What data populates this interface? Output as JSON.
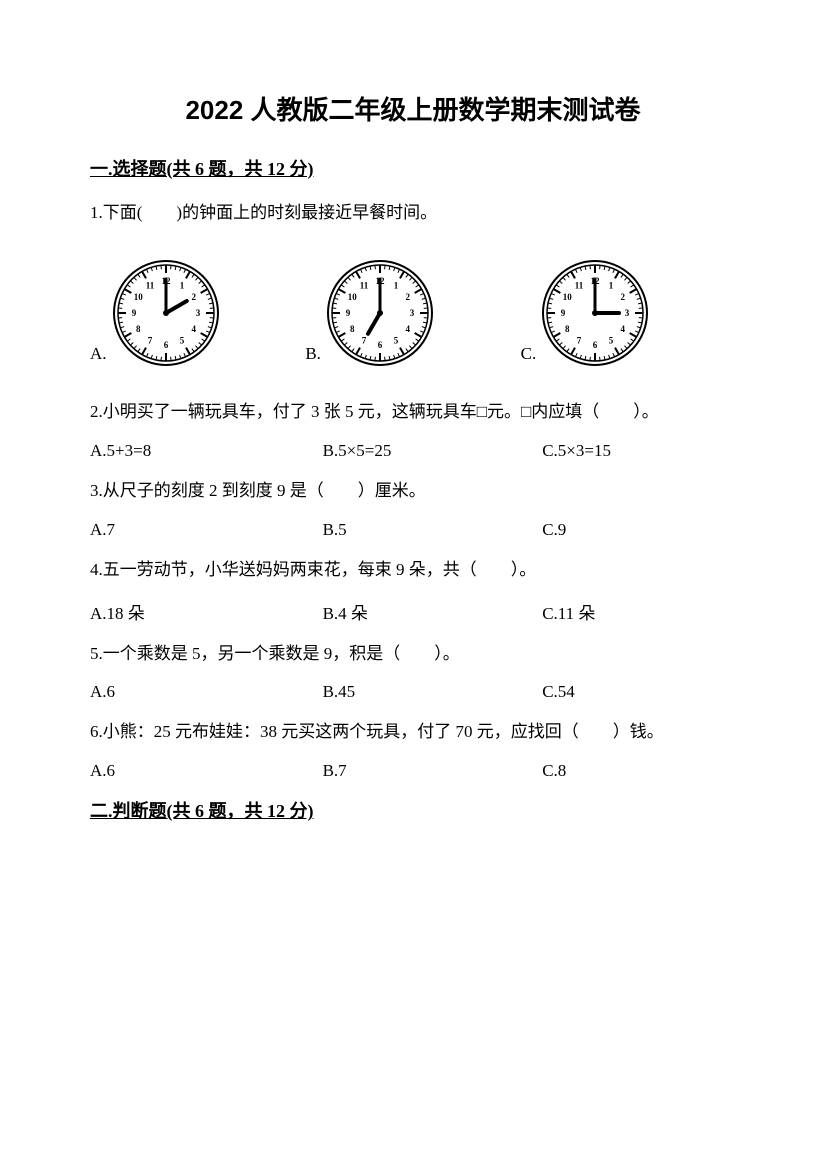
{
  "title": "2022 人教版二年级上册数学期末测试卷",
  "section1": {
    "heading": "一.选择题(共 6 题，共 12 分)",
    "q1": {
      "text": "1.下面(　　)的钟面上的时刻最接近早餐时间。",
      "opts": {
        "a": "A.",
        "b": "B.",
        "c": "C."
      },
      "clocks": {
        "a": {
          "hour": 2,
          "minute": 0
        },
        "b": {
          "hour": 7,
          "minute": 0
        },
        "c": {
          "hour": 3,
          "minute": 0
        }
      }
    },
    "q2": {
      "text": "2.小明买了一辆玩具车，付了 3 张 5 元，这辆玩具车□元。□内应填（　　）。",
      "a": "A.5+3=8",
      "b": "B.5×5=25",
      "c": "C.5×3=15"
    },
    "q3": {
      "text": "3.从尺子的刻度 2 到刻度 9 是（　　）厘米。",
      "a": "A.7",
      "b": "B.5",
      "c": "C.9"
    },
    "q4": {
      "text": "4.五一劳动节，小华送妈妈两束花，每束 9 朵，共（　　）。",
      "a": "A.18 朵",
      "b": "B.4 朵",
      "c": "C.11 朵"
    },
    "q5": {
      "text": "5.一个乘数是 5，另一个乘数是 9，积是（　　）。",
      "a": "A.6",
      "b": "B.45",
      "c": "C.54"
    },
    "q6": {
      "text": "6.小熊：25 元布娃娃：38 元买这两个玩具，付了 70 元，应找回（　　）钱。",
      "a": "A.6",
      "b": "B.7",
      "c": "C.8"
    }
  },
  "section2": {
    "heading": "二.判断题(共 6 题，共 12 分)"
  },
  "style": {
    "clock_stroke": "#000000",
    "clock_fill": "#ffffff",
    "clock_radius": 48,
    "tick_major_len": 8,
    "tick_minor_len": 4,
    "hand_hour_len": 24,
    "hand_min_len": 34,
    "number_fontsize": 9
  }
}
